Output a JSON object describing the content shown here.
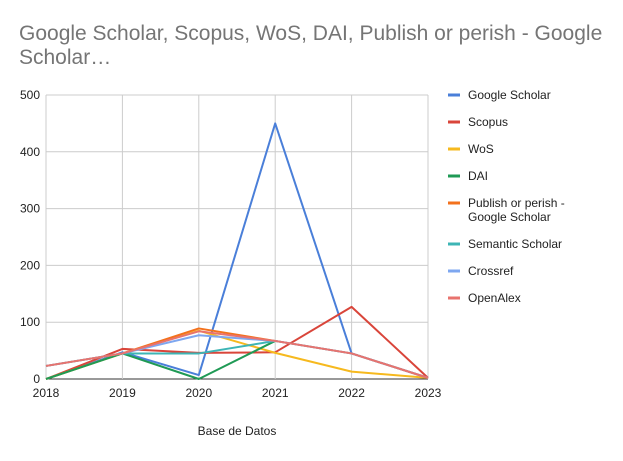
{
  "chart_data": {
    "type": "line",
    "title": "Google Scholar, Scopus, WoS, DAI, Publish or perish - Google Scholar…",
    "xlabel": "Base de Datos",
    "ylabel": "",
    "x": [
      "2018",
      "2019",
      "2020",
      "2021",
      "2022",
      "2023"
    ],
    "ylim": [
      0,
      500
    ],
    "yticks": [
      "0",
      "100",
      "200",
      "300",
      "400",
      "500"
    ],
    "grid": true,
    "legend_position": "right",
    "series": [
      {
        "name": "Google Scholar",
        "color": "#4a7fd9",
        "values": [
          0,
          47,
          7,
          450,
          45,
          2
        ]
      },
      {
        "name": "Scopus",
        "color": "#d9453a",
        "values": [
          0,
          53,
          46,
          47,
          127,
          2
        ]
      },
      {
        "name": "WoS",
        "color": "#f6b91e",
        "values": [
          0,
          45,
          85,
          46,
          13,
          2
        ]
      },
      {
        "name": "DAI",
        "color": "#1f9a55",
        "values": [
          0,
          45,
          0,
          67,
          null,
          null
        ]
      },
      {
        "name": "Publish or perish - Google Scholar",
        "legend_lines": [
          "Publish or perish -",
          "Google Scholar"
        ],
        "color": "#f3711d",
        "values": [
          23,
          45,
          89,
          67,
          45,
          2
        ]
      },
      {
        "name": "Semantic Scholar",
        "color": "#3db5b5",
        "values": [
          23,
          45,
          45,
          67,
          45,
          2
        ]
      },
      {
        "name": "Crossref",
        "color": "#7ea7f0",
        "values": [
          23,
          45,
          77,
          67,
          45,
          2
        ]
      },
      {
        "name": "OpenAlex",
        "color": "#e8736e",
        "values": [
          23,
          45,
          84,
          67,
          45,
          2
        ]
      }
    ]
  }
}
